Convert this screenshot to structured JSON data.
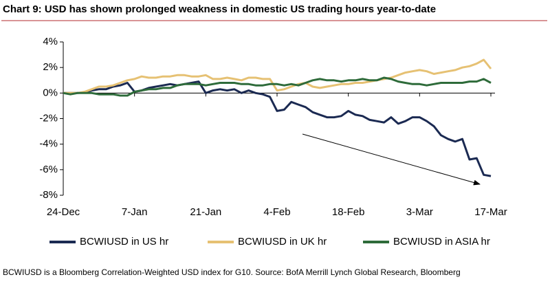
{
  "chart_data": {
    "type": "line",
    "title": "Chart 9: USD has shown prolonged weakness in domestic US trading hours year-to-date",
    "footnote": "BCWIUSD is a Bloomberg Correlation-Weighted USD index for G10. Source: BofA Merrill Lynch Global Research, Bloomberg",
    "categories": [
      "24-Dec",
      null,
      null,
      null,
      null,
      null,
      null,
      null,
      null,
      null,
      "7-Jan",
      null,
      null,
      null,
      null,
      null,
      null,
      null,
      null,
      null,
      "21-Jan",
      null,
      null,
      null,
      null,
      null,
      null,
      null,
      null,
      null,
      "4-Feb",
      null,
      null,
      null,
      null,
      null,
      null,
      null,
      null,
      null,
      "18-Feb",
      null,
      null,
      null,
      null,
      null,
      null,
      null,
      null,
      null,
      "3-Mar",
      null,
      null,
      null,
      null,
      null,
      null,
      null,
      null,
      null,
      "17-Mar"
    ],
    "series": [
      {
        "name": "BCWIUSD in US hr",
        "color": "#1b2a52",
        "values": [
          0,
          0,
          0,
          0.05,
          0.2,
          0.3,
          0.3,
          0.5,
          0.6,
          0.8,
          0.1,
          0.2,
          0.4,
          0.5,
          0.6,
          0.7,
          0.6,
          0.7,
          0.8,
          0.9,
          0.0,
          0.2,
          0.3,
          0.2,
          0.3,
          0.0,
          0.2,
          0.0,
          -0.1,
          -0.3,
          -1.4,
          -1.3,
          -0.7,
          -0.9,
          -1.1,
          -1.5,
          -1.7,
          -1.9,
          -1.9,
          -1.8,
          -1.4,
          -1.7,
          -1.8,
          -2.1,
          -2.2,
          -2.3,
          -1.9,
          -2.4,
          -2.2,
          -1.9,
          -1.9,
          -2.2,
          -2.6,
          -3.3,
          -3.6,
          -3.8,
          -3.6,
          -5.2,
          -5.1,
          -6.4,
          -6.5
        ]
      },
      {
        "name": "BCWIUSD in UK hr",
        "color": "#e6c173",
        "values": [
          0,
          0,
          0,
          0.1,
          0.3,
          0.5,
          0.5,
          0.6,
          0.8,
          1.0,
          1.1,
          1.3,
          1.2,
          1.2,
          1.3,
          1.3,
          1.4,
          1.4,
          1.3,
          1.3,
          1.4,
          1.1,
          1.1,
          1.2,
          1.1,
          1.0,
          1.2,
          1.2,
          1.1,
          1.1,
          0.2,
          0.3,
          0.5,
          0.7,
          0.8,
          0.5,
          0.4,
          0.5,
          0.6,
          0.7,
          0.7,
          0.8,
          0.8,
          0.9,
          1.0,
          1.1,
          1.2,
          1.4,
          1.6,
          1.7,
          1.8,
          1.7,
          1.5,
          1.6,
          1.7,
          1.8,
          2.0,
          2.1,
          2.3,
          2.6,
          1.9
        ]
      },
      {
        "name": "BCWIUSD in ASIA hr",
        "color": "#2e6b3a",
        "values": [
          0,
          -0.1,
          0,
          0,
          0,
          -0.1,
          -0.1,
          -0.1,
          -0.2,
          -0.2,
          0.1,
          0.2,
          0.3,
          0.3,
          0.4,
          0.4,
          0.6,
          0.7,
          0.7,
          0.7,
          0.6,
          0.7,
          0.8,
          0.8,
          0.8,
          0.7,
          0.7,
          0.6,
          0.6,
          0.7,
          0.7,
          0.6,
          0.7,
          0.6,
          0.8,
          1.0,
          1.1,
          1.0,
          1.0,
          0.9,
          1.0,
          1.0,
          1.1,
          1.0,
          1.0,
          1.2,
          1.1,
          0.9,
          0.8,
          0.7,
          0.7,
          0.6,
          0.7,
          0.8,
          0.8,
          0.8,
          0.8,
          0.9,
          0.9,
          1.1,
          0.8
        ]
      }
    ],
    "ylim": [
      -8,
      4
    ],
    "yticks": [
      {
        "value": -8,
        "label": "-8%"
      },
      {
        "value": -6,
        "label": "-6%"
      },
      {
        "value": -4,
        "label": "-4%"
      },
      {
        "value": -2,
        "label": "-2%"
      },
      {
        "value": 0,
        "label": "0%"
      },
      {
        "value": 2,
        "label": "2%"
      },
      {
        "value": 4,
        "label": "4%"
      }
    ]
  }
}
